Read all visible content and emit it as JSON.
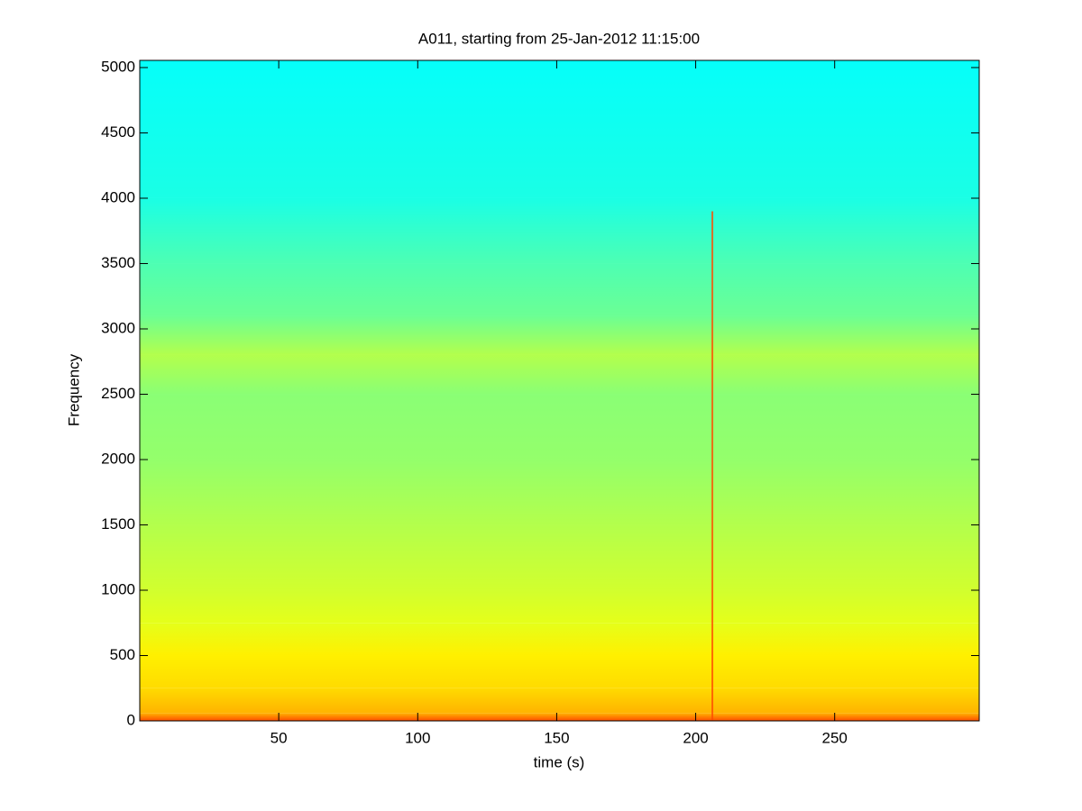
{
  "chart_data": {
    "type": "spectrogram",
    "title": "A011, starting from 25-Jan-2012 11:15:00",
    "x_label": "time (s)",
    "y_label": "Frequency",
    "xlim": [
      0,
      302
    ],
    "ylim": [
      0,
      5055
    ],
    "xticks": [
      50,
      100,
      150,
      200,
      250
    ],
    "yticks": [
      0,
      500,
      1000,
      1500,
      2000,
      2500,
      3000,
      3500,
      4000,
      4500,
      5000
    ],
    "colormap": "jet",
    "frequencies": [
      0,
      60,
      250,
      500,
      750,
      1000,
      1500,
      2000,
      2500,
      2800,
      3100,
      3500,
      4000,
      5055
    ],
    "intensity": [
      0.8,
      0.7,
      0.66,
      0.64,
      0.6,
      0.58,
      0.55,
      0.52,
      0.51,
      0.55,
      0.48,
      0.45,
      0.4,
      0.38
    ],
    "transients": [
      {
        "time": 206,
        "fmax": 3900
      }
    ]
  }
}
